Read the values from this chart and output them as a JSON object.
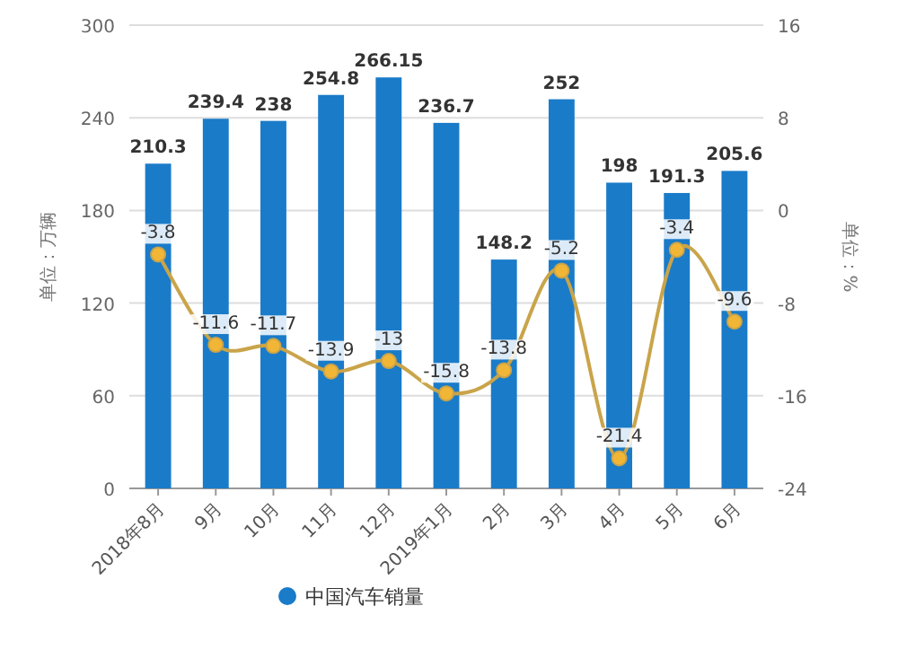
{
  "chart_data": {
    "type": "bar",
    "categories": [
      "2018年8月",
      "9月",
      "10月",
      "11月",
      "12月",
      "2019年1月",
      "2月",
      "3月",
      "4月",
      "5月",
      "6月"
    ],
    "ylabel": "单位：万辆",
    "y2label": "单位：%",
    "series": [
      {
        "name": "中国汽车销量",
        "color": "#1a7bc9",
        "values": [
          210.3,
          239.4,
          238,
          254.8,
          266.15,
          236.7,
          148.2,
          252,
          198,
          191.3,
          205.6
        ]
      },
      {
        "type": "line",
        "axis": "y2",
        "color": "#c9a44a",
        "values": [
          -3.8,
          -11.6,
          -11.7,
          -13.9,
          -13,
          -15.8,
          -13.8,
          -5.2,
          -21.4,
          -3.4,
          -9.6
        ]
      }
    ],
    "ylim": [
      0,
      300
    ],
    "yticks": [
      0,
      60,
      120,
      180,
      240,
      300
    ],
    "y2lim": [
      -24,
      16
    ],
    "y2ticks": [
      -24,
      -16,
      -8,
      0,
      8,
      16
    ],
    "grid": "y",
    "legend": "bottom",
    "marker": "circle",
    "data_labels": true
  }
}
